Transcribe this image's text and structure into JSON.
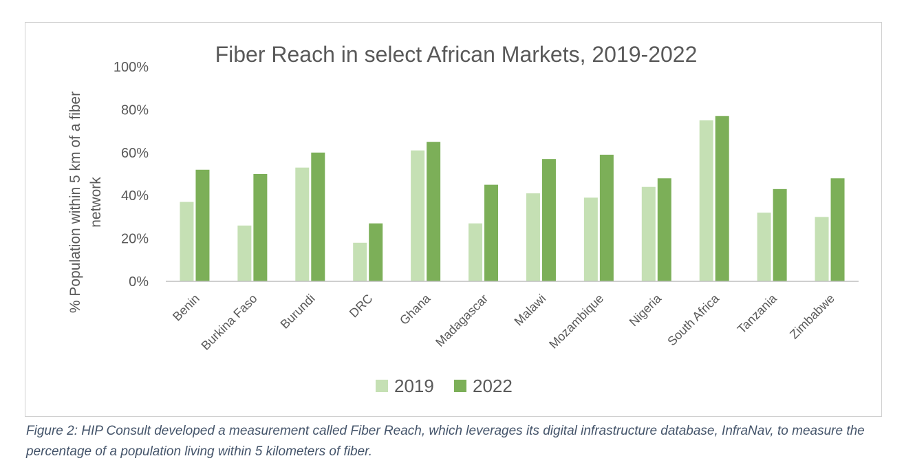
{
  "chart_data": {
    "type": "bar",
    "title": "Fiber Reach in select African Markets, 2019-2022",
    "ylabel": "% Population within 5 km of a fiber network",
    "ylabel_lines": [
      "% Population within 5 km of a fiber",
      "network"
    ],
    "xlabel": "",
    "ylim": [
      0,
      100
    ],
    "yticks": [
      0,
      20,
      40,
      60,
      80,
      100
    ],
    "ytick_labels": [
      "0%",
      "20%",
      "40%",
      "60%",
      "80%",
      "100%"
    ],
    "categories": [
      "Benin",
      "Burkina Faso",
      "Burundi",
      "DRC",
      "Ghana",
      "Madagascar",
      "Malawi",
      "Mozambique",
      "Nigeria",
      "South Africa",
      "Tanzania",
      "Zimbabwe"
    ],
    "series": [
      {
        "name": "2019",
        "color": "#c5e0b4",
        "values": [
          37,
          26,
          53,
          18,
          61,
          27,
          41,
          39,
          44,
          75,
          32,
          30
        ]
      },
      {
        "name": "2022",
        "color": "#7caf58",
        "values": [
          52,
          50,
          60,
          27,
          65,
          45,
          57,
          59,
          48,
          77,
          43,
          48
        ]
      }
    ],
    "grid": false,
    "legend_position": "bottom-center"
  },
  "caption": "Figure 2: HIP Consult developed a measurement called Fiber Reach, which leverages its digital infrastructure database, InfraNav, to measure the percentage of a population living within 5 kilometers of fiber.",
  "colors": {
    "axis": "#bfbfbf",
    "text": "#595959",
    "caption": "#44546a"
  }
}
